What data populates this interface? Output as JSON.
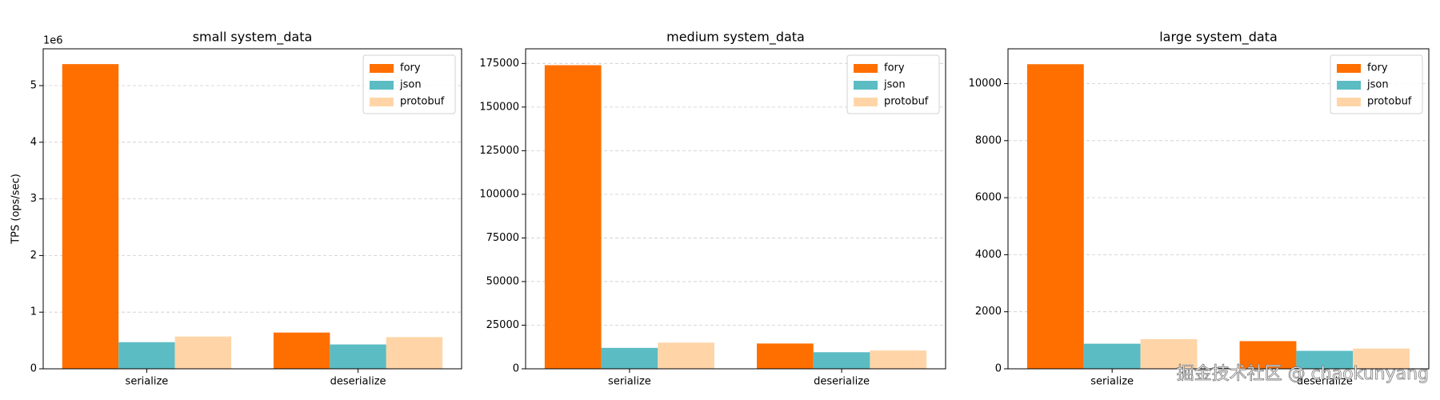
{
  "chart_data": [
    {
      "type": "bar",
      "title": "small system_data",
      "ylabel": "TPS (ops/sec)",
      "offset_label": "1e6",
      "categories": [
        "serialize",
        "deserialize"
      ],
      "series": [
        {
          "name": "fory",
          "color": "#ff6f00",
          "values": [
            5.38,
            0.64
          ]
        },
        {
          "name": "json",
          "color": "#5bbcc4",
          "values": [
            0.47,
            0.43
          ]
        },
        {
          "name": "protobuf",
          "color": "#ffd5a8",
          "values": [
            0.57,
            0.56
          ]
        }
      ],
      "ylim": [
        0,
        5.65
      ],
      "yticks": [
        0,
        1,
        2,
        3,
        4,
        5
      ],
      "grid": true,
      "legend": "upper right"
    },
    {
      "type": "bar",
      "title": "medium system_data",
      "categories": [
        "serialize",
        "deserialize"
      ],
      "series": [
        {
          "name": "fory",
          "color": "#ff6f00",
          "values": [
            174000,
            14500
          ]
        },
        {
          "name": "json",
          "color": "#5bbcc4",
          "values": [
            12000,
            9500
          ]
        },
        {
          "name": "protobuf",
          "color": "#ffd5a8",
          "values": [
            15000,
            10500
          ]
        }
      ],
      "ylim": [
        0,
        183400
      ],
      "yticks": [
        0,
        25000,
        50000,
        75000,
        100000,
        125000,
        150000,
        175000
      ],
      "grid": true,
      "legend": "upper right"
    },
    {
      "type": "bar",
      "title": "large system_data",
      "categories": [
        "serialize",
        "deserialize"
      ],
      "series": [
        {
          "name": "fory",
          "color": "#ff6f00",
          "values": [
            10680,
            970
          ]
        },
        {
          "name": "json",
          "color": "#5bbcc4",
          "values": [
            880,
            630
          ]
        },
        {
          "name": "protobuf",
          "color": "#ffd5a8",
          "values": [
            1040,
            710
          ]
        }
      ],
      "ylim": [
        0,
        11220
      ],
      "yticks": [
        0,
        2000,
        4000,
        6000,
        8000,
        10000
      ],
      "grid": true,
      "legend": "upper right"
    }
  ],
  "watermark": "掘金技术社区 @ chaokunyang"
}
